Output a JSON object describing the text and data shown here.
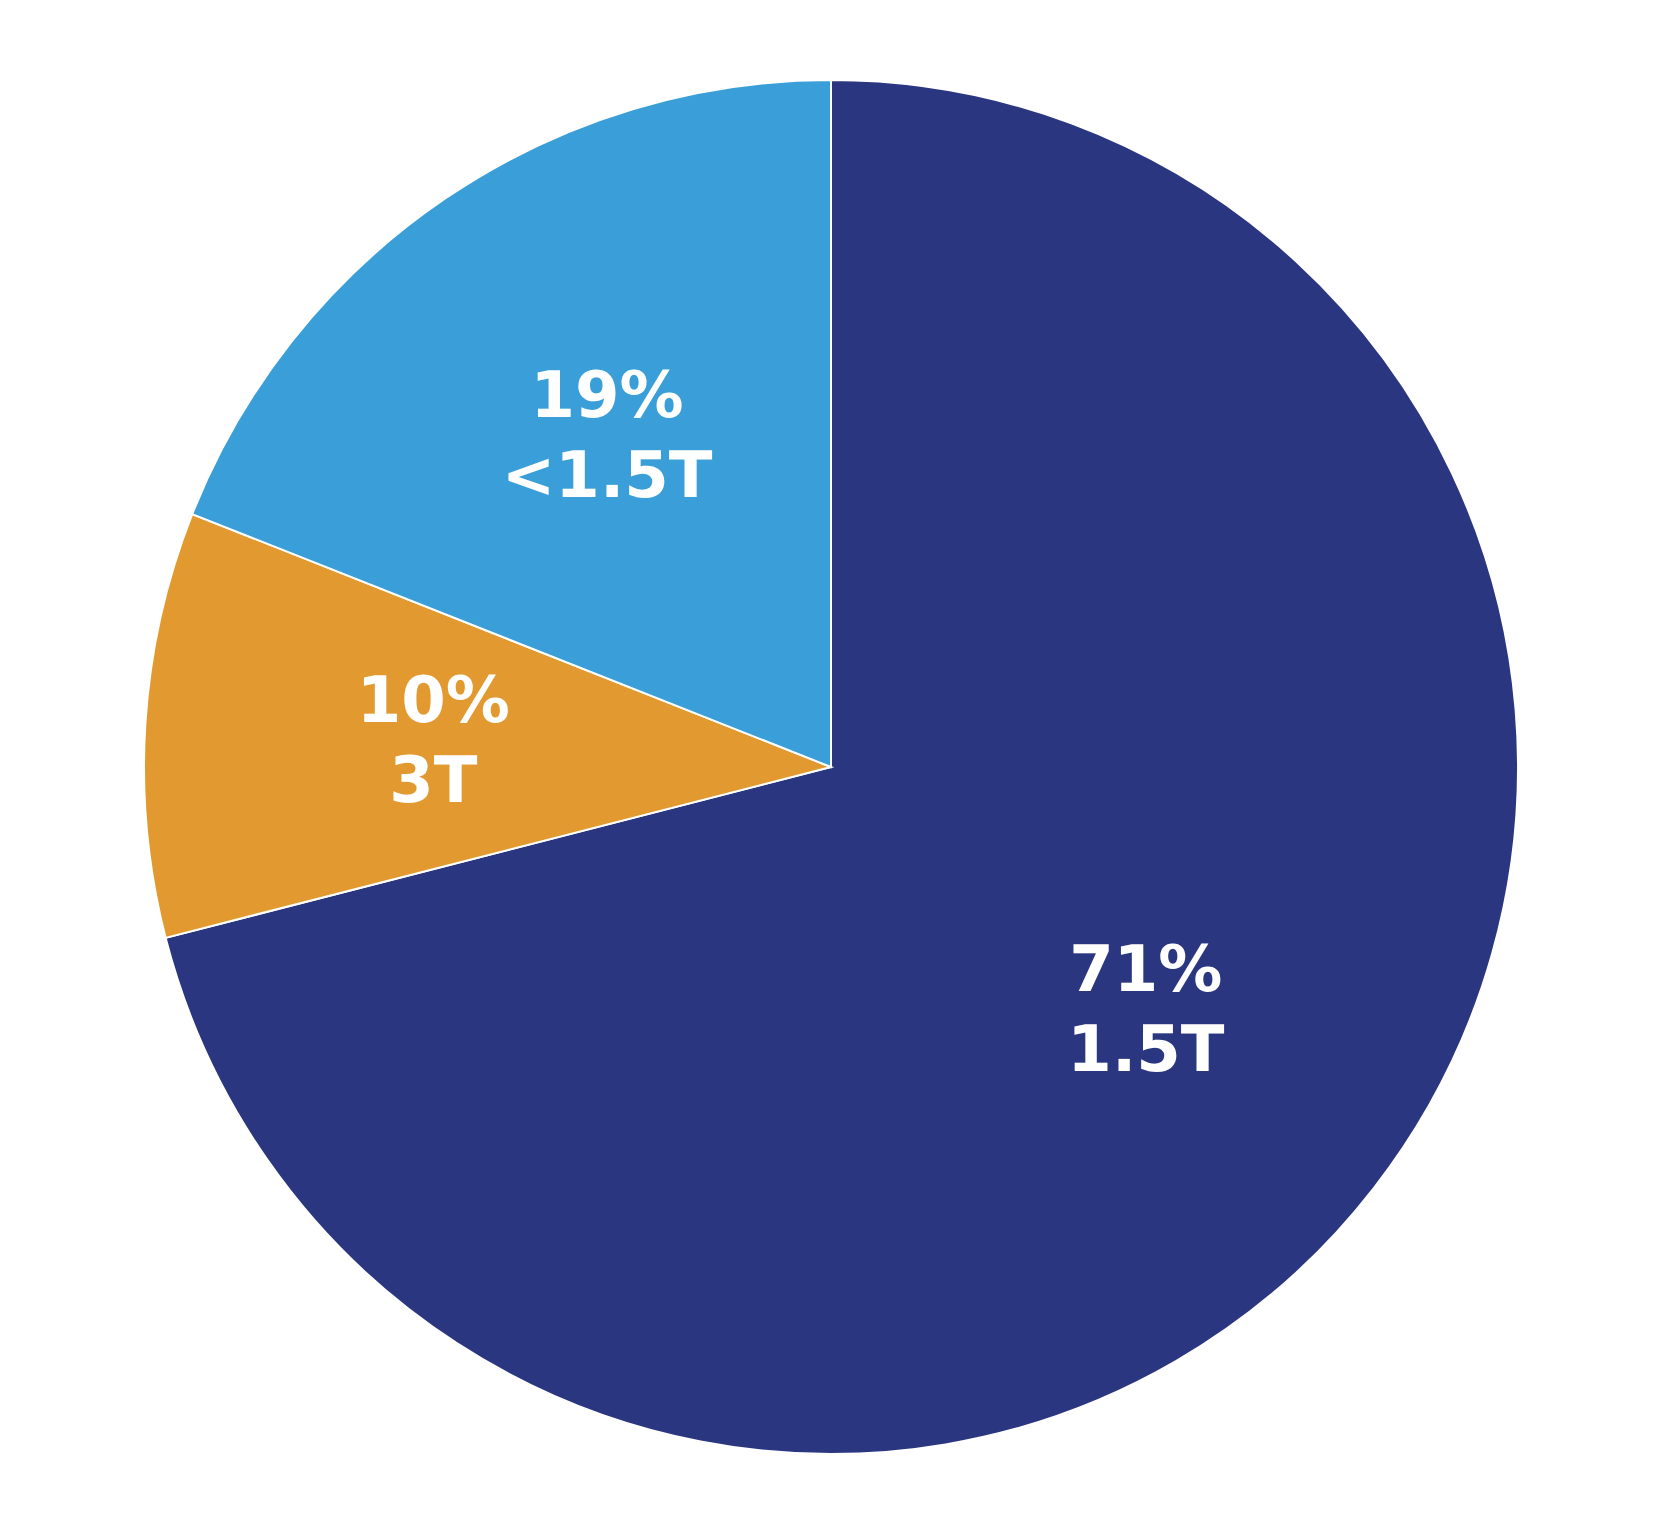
{
  "chart_data": {
    "type": "pie",
    "categories": [
      "1.5T",
      "3T",
      "<1.5T"
    ],
    "values": [
      71,
      10,
      19
    ],
    "colors": [
      "#2b3680",
      "#e29a30",
      "#3a9fd8"
    ],
    "value_labels": [
      "71%",
      "10%",
      "19%"
    ],
    "legend": false
  }
}
